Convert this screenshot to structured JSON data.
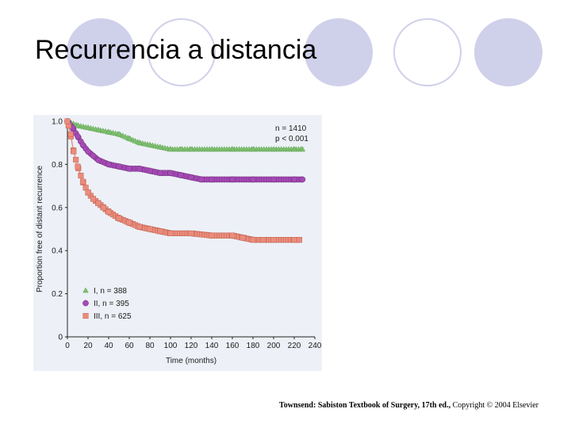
{
  "slide": {
    "title": "Recurrencia a distancia",
    "citation_source": "Townsend: Sabiston Textbook of Surgery, 17th ed.,",
    "citation_copyright": "Copyright © 2004 Elsevier"
  },
  "colors": {
    "background": "#ffffff",
    "circle": "#cfd0ea",
    "chart_bg": "#edf1f7"
  },
  "chart_data": {
    "type": "line",
    "title": "",
    "xlabel": "Time (months)",
    "ylabel": "Proportion free of distant recurrence",
    "xlim": [
      0,
      240
    ],
    "ylim": [
      0,
      1.0
    ],
    "x_ticks": [
      0,
      20,
      40,
      60,
      80,
      100,
      120,
      140,
      160,
      180,
      200,
      220,
      240
    ],
    "y_ticks": [
      0,
      0.2,
      0.4,
      0.6,
      0.8,
      1.0
    ],
    "y_tick_labels": [
      "0",
      "0.2",
      "0.4",
      "0.6",
      "0.8",
      "1.0"
    ],
    "annotations": [
      "n = 1410",
      "p < 0.001"
    ],
    "grid": false,
    "legend_position": "bottom-left",
    "series": [
      {
        "name": "I, n = 388",
        "marker": "triangle",
        "color": "#7dbf6e",
        "x": [
          0,
          10,
          20,
          30,
          40,
          50,
          60,
          70,
          80,
          90,
          100,
          110,
          120,
          140,
          160,
          180,
          200,
          220,
          228
        ],
        "y": [
          1.0,
          0.98,
          0.97,
          0.96,
          0.95,
          0.94,
          0.92,
          0.9,
          0.89,
          0.88,
          0.87,
          0.87,
          0.87,
          0.87,
          0.87,
          0.87,
          0.87,
          0.87,
          0.87
        ]
      },
      {
        "name": "II, n = 395",
        "marker": "circle",
        "color": "#a64ab6",
        "x": [
          0,
          5,
          10,
          15,
          20,
          25,
          30,
          40,
          50,
          60,
          70,
          80,
          90,
          100,
          110,
          120,
          130,
          140,
          160,
          180,
          200,
          220,
          228
        ],
        "y": [
          1.0,
          0.97,
          0.93,
          0.89,
          0.86,
          0.84,
          0.82,
          0.8,
          0.79,
          0.78,
          0.78,
          0.77,
          0.76,
          0.76,
          0.75,
          0.74,
          0.73,
          0.73,
          0.73,
          0.73,
          0.73,
          0.73,
          0.73
        ]
      },
      {
        "name": "III, n = 625",
        "marker": "square",
        "color": "#ea8c7c",
        "x": [
          0,
          3,
          6,
          10,
          15,
          20,
          25,
          30,
          35,
          40,
          50,
          60,
          70,
          80,
          90,
          100,
          120,
          140,
          160,
          170,
          180,
          190,
          200,
          220,
          225
        ],
        "y": [
          1.0,
          0.94,
          0.86,
          0.79,
          0.72,
          0.67,
          0.64,
          0.62,
          0.6,
          0.58,
          0.55,
          0.53,
          0.51,
          0.5,
          0.49,
          0.48,
          0.48,
          0.47,
          0.47,
          0.46,
          0.45,
          0.45,
          0.45,
          0.45,
          0.45
        ]
      }
    ]
  }
}
